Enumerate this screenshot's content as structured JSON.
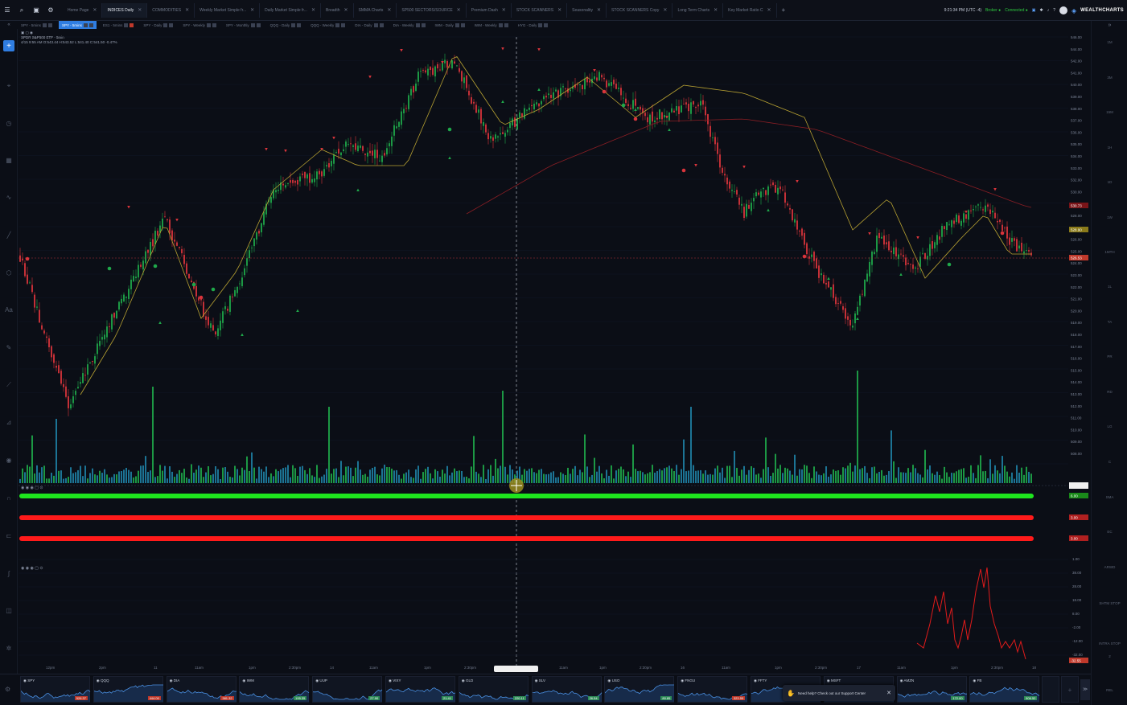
{
  "top_tabs": [
    {
      "label": "Home Page",
      "active": false
    },
    {
      "label": "INDICES Daily",
      "active": true
    },
    {
      "label": "COMMODITIES",
      "active": false
    },
    {
      "label": "Weekly Market Simple fr...",
      "active": false
    },
    {
      "label": "Daily Market Simple fr...",
      "active": false
    },
    {
      "label": "Breadth",
      "active": false
    },
    {
      "label": "SMMA Charts",
      "active": false
    },
    {
      "label": "SP500 SECTORS/SOURCE",
      "active": false
    },
    {
      "label": "Premium Dash",
      "active": false
    },
    {
      "label": "STOCK SCANNERS",
      "active": false
    },
    {
      "label": "Seasonality",
      "active": false
    },
    {
      "label": "STOCK SCANNERS Copy",
      "active": false
    },
    {
      "label": "Long Term Charts",
      "active": false
    },
    {
      "label": "Key Market Ratio C",
      "active": false
    }
  ],
  "status": {
    "time": "9:21:34 PM (UTC -4)",
    "broker": "Broker",
    "connection": "Connected",
    "brand": "WEALTHCHARTS"
  },
  "chart_tabs": [
    {
      "label": "SPY - 5mins",
      "active": false
    },
    {
      "label": "SPY - 5mins",
      "active": true
    },
    {
      "label": "ES1 - 5mins",
      "active": false
    },
    {
      "label": "SPY - Daily",
      "active": false
    },
    {
      "label": "SPY - Weekly",
      "active": false
    },
    {
      "label": "SPY - Monthly",
      "active": false
    },
    {
      "label": "QQQ - Daily",
      "active": false
    },
    {
      "label": "QQQ - Weekly",
      "active": false
    },
    {
      "label": "DIA - Daily",
      "active": false
    },
    {
      "label": "DIA - Weekly",
      "active": false
    },
    {
      "label": "IWM - Daily",
      "active": false
    },
    {
      "label": "IWM - Weekly",
      "active": false
    },
    {
      "label": "HYG - Daily",
      "active": false
    }
  ],
  "legend": {
    "symbol_line": "SPDR S&P500 ETF · 5min",
    "ohlc_line": "4/15 9:55 AM O:543.44 H:543.52 L:541.40 C:541.50 -0.47%"
  },
  "price_axis": {
    "ticks": [
      "546.00",
      "544.00",
      "542.00",
      "541.00",
      "540.00",
      "539.00",
      "538.00",
      "537.00",
      "536.00",
      "535.00",
      "534.00",
      "533.00",
      "532.00",
      "530.00",
      "529.00",
      "528.00",
      "527.00",
      "526.00",
      "525.00",
      "524.00",
      "523.00",
      "522.00",
      "521.00",
      "520.00",
      "519.00",
      "518.00",
      "517.00",
      "516.00",
      "515.00",
      "514.00",
      "513.00",
      "512.00",
      "511.00",
      "510.00",
      "509.00",
      "508.00"
    ],
    "last_price_tag": "526.53",
    "ma_tag": "528.90",
    "red_tag": "530.73"
  },
  "indicator_panels": {
    "panel1_tags": [
      "6.00",
      "3.00",
      "3.00"
    ],
    "panel2_ticks": [
      "1.00",
      "38.00",
      "28.00",
      "18.00",
      "8.00",
      "-2.00",
      "-12.00",
      "-32.00"
    ],
    "panel2_last": "-32.55"
  },
  "time_axis": [
    "12pm",
    "2pm",
    "11",
    "11am",
    "1pm",
    "2:30pm",
    "14",
    "11am",
    "1pm",
    "2:30pm",
    "15",
    "11am",
    "1pm",
    "2:30pm",
    "16",
    "11am",
    "1pm",
    "2:30pm",
    "17",
    "11am",
    "1pm",
    "2:30pm",
    "18"
  ],
  "right_tools": [
    "1M",
    "3M",
    "15M",
    "1H",
    "1D",
    "1W",
    "1MTH",
    "1L",
    "TA",
    "PR",
    "RD",
    "LG",
    "C",
    "SMA",
    "EC",
    "ARWD",
    "SHTM STOP",
    "INTRA STOP",
    "2",
    "REL"
  ],
  "watchlist": [
    {
      "symbol": "SPY",
      "price": "526.37",
      "color": "#c0392b"
    },
    {
      "symbol": "QQQ",
      "price": "444.00",
      "color": "#c0392b"
    },
    {
      "symbol": "DIA",
      "price": "381.32",
      "color": "#c0392b"
    },
    {
      "symbol": "IWM",
      "price": "195.35",
      "color": "#2e8b57"
    },
    {
      "symbol": "UUP",
      "price": "27.90",
      "color": "#2e8b57"
    },
    {
      "symbol": "VIXY",
      "price": "21.41",
      "color": "#2e8b57"
    },
    {
      "symbol": "GLD",
      "price": "220.11",
      "color": "#2e8b57"
    },
    {
      "symbol": "SLV",
      "price": "26.54",
      "color": "#2e8b57"
    },
    {
      "symbol": "USO",
      "price": "80.85",
      "color": "#2e8b57"
    },
    {
      "symbol": "FNGU",
      "price": "323.55",
      "color": "#c0392b"
    },
    {
      "symbol": "FFTY",
      "price": "",
      "color": "#c0392b"
    },
    {
      "symbol": "MSFT",
      "price": "",
      "color": "#c0392b"
    },
    {
      "symbol": "AMZN",
      "price": "172.00",
      "color": "#2e8b57"
    },
    {
      "symbol": "FB",
      "price": "506.52",
      "color": "#2e8b57"
    }
  ],
  "help_toast": {
    "text": "Need help? Check out our Support Center"
  },
  "icons": {
    "menu": "menu-icon",
    "search": "search-icon",
    "layout": "layout-icon",
    "ai": "ai-icon",
    "save": "save-icon",
    "settings": "gear-icon",
    "bell": "bell-icon",
    "help": "help-icon"
  },
  "colors": {
    "bg": "#0b0e16",
    "up": "#1fa84a",
    "down": "#d9343b",
    "accent": "#2f7de1",
    "ma_yellow": "#b8a232",
    "ma_red": "#8a1e24"
  }
}
